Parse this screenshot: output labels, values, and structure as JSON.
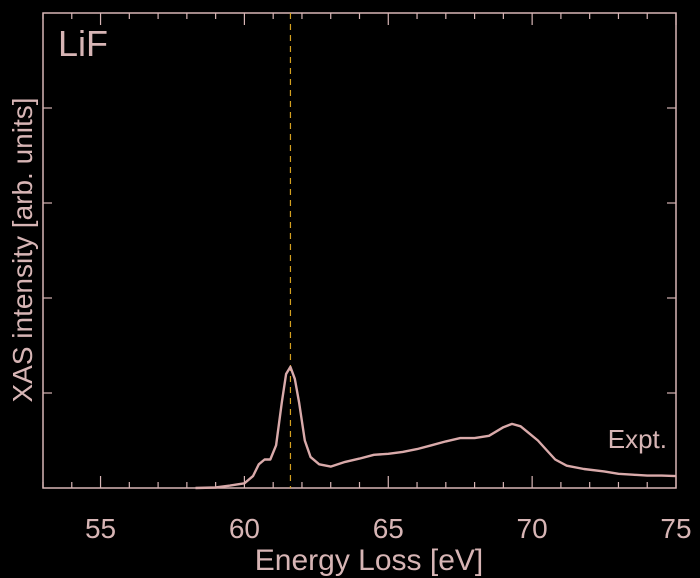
{
  "colors": {
    "background": "#000000",
    "axis": "#d7b5b5",
    "series": "#d9aaaa",
    "marker": "#d4a020",
    "text": "#d7b5b5"
  },
  "chart_data": {
    "type": "line",
    "annotation": "LiF",
    "xlabel": "Energy Loss [eV]",
    "ylabel": "XAS intensity [arb. units]",
    "xlim": [
      53,
      75
    ],
    "ylim": [
      0,
      1
    ],
    "x_ticks": [
      "55",
      "60",
      "65",
      "70",
      "75"
    ],
    "x_tick_values": [
      55,
      60,
      65,
      70,
      75
    ],
    "y_tick_labels": "none",
    "grid": false,
    "marker_line_x": 61.6,
    "series": [
      {
        "name": "Expt.",
        "x": [
          58.3,
          59.0,
          59.5,
          60.0,
          60.3,
          60.5,
          60.7,
          60.9,
          61.1,
          61.3,
          61.45,
          61.6,
          61.75,
          61.9,
          62.1,
          62.3,
          62.6,
          63.0,
          63.5,
          64.0,
          64.5,
          65.0,
          65.5,
          66.0,
          66.5,
          67.0,
          67.5,
          68.0,
          68.5,
          69.0,
          69.3,
          69.6,
          69.9,
          70.2,
          70.5,
          70.8,
          71.2,
          71.8,
          72.5,
          73.0,
          73.5,
          74.0,
          74.5,
          75.0
        ],
        "y": [
          0.0,
          0.001,
          0.005,
          0.01,
          0.025,
          0.05,
          0.06,
          0.06,
          0.09,
          0.18,
          0.24,
          0.255,
          0.23,
          0.18,
          0.1,
          0.065,
          0.05,
          0.045,
          0.055,
          0.062,
          0.07,
          0.072,
          0.076,
          0.082,
          0.09,
          0.098,
          0.105,
          0.105,
          0.11,
          0.128,
          0.135,
          0.13,
          0.115,
          0.1,
          0.08,
          0.06,
          0.047,
          0.04,
          0.035,
          0.03,
          0.028,
          0.026,
          0.026,
          0.025
        ]
      }
    ]
  }
}
